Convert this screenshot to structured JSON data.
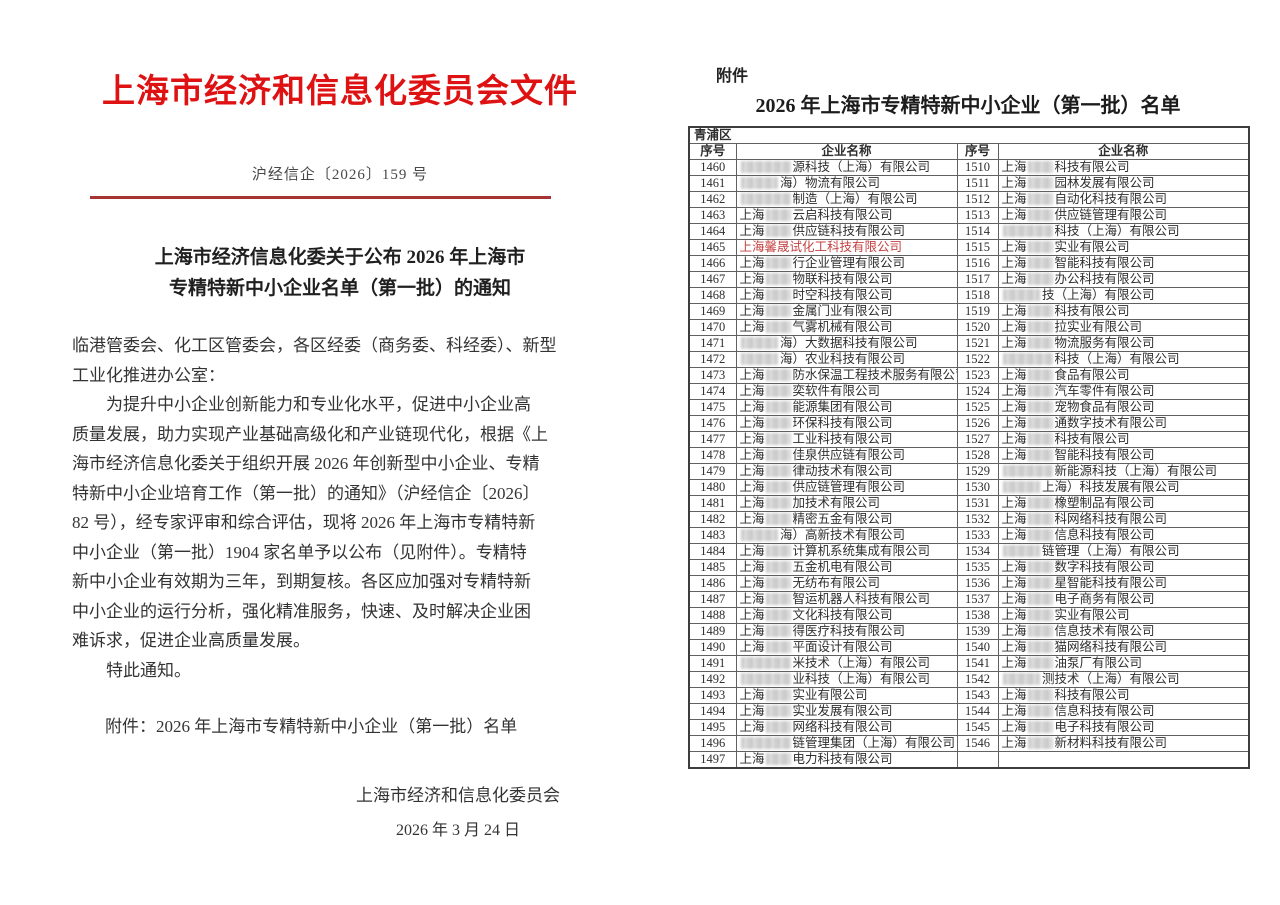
{
  "colors": {
    "header_red": "#de1212",
    "rule_red": "#a63434",
    "highlight_red": "#c54040",
    "border_dark": "#3d3d3d",
    "border_light": "#606060",
    "ink": "#333333"
  },
  "page_left": {
    "org_header": "上海市经济和信息化委员会文件",
    "doc_number": "沪经信企〔2026〕159 号",
    "title_line1": "上海市经济信息化委关于公布 2026 年上海市",
    "title_line2": "专精特新中小企业名单（第一批）的通知",
    "body_lines": [
      "临港管委会、化工区管委会，各区经委（商务委、科经委）、新型",
      "工业化推进办公室：",
      "　　为提升中小企业创新能力和专业化水平，促进中小企业高",
      "质量发展，助力实现产业基础高级化和产业链现代化，根据《上",
      "海市经济信息化委关于组织开展 2026 年创新型中小企业、专精",
      "特新中小企业培育工作（第一批）的通知》（沪经信企〔2026〕",
      "82 号），经专家评审和综合评估，现将 2026 年上海市专精特新",
      "中小企业（第一批）1904 家名单予以公布（见附件）。专精特",
      "新中小企业有效期为三年，到期复核。各区应加强对专精特新",
      "中小企业的运行分析，强化精准服务，快速、及时解决企业困",
      "难诉求，促进企业高质量发展。",
      "　　特此通知。"
    ],
    "attachment_line": "附件：2026 年上海市专精特新中小企业（第一批）名单",
    "signature": "上海市经济和信息化委员会",
    "date": "2026 年 3 月 24 日"
  },
  "page_right": {
    "attachment_label": "附件",
    "table_title": "2026 年上海市专精特新中小企业（第一批）名单",
    "region": "青浦区",
    "col_headers": [
      "序号",
      "企业名称",
      "序号",
      "企业名称"
    ],
    "rows": [
      {
        "ln": "1460",
        "lp": "",
        "lb": 4,
        "ls": "源科技（上海）有限公司",
        "rn": "1510",
        "rp": "上海",
        "rb": 2,
        "rs": "科技有限公司"
      },
      {
        "ln": "1461",
        "lp": "",
        "lb": 3,
        "ls": "海）物流有限公司",
        "rn": "1511",
        "rp": "上海",
        "rb": 2,
        "rs": "园林发展有限公司"
      },
      {
        "ln": "1462",
        "lp": "",
        "lb": 4,
        "ls": "制造（上海）有限公司",
        "rn": "1512",
        "rp": "上海",
        "rb": 2,
        "rs": "自动化科技有限公司"
      },
      {
        "ln": "1463",
        "lp": "上海",
        "lb": 2,
        "ls": "云启科技有限公司",
        "rn": "1513",
        "rp": "上海",
        "rb": 2,
        "rs": "供应链管理有限公司"
      },
      {
        "ln": "1464",
        "lp": "上海",
        "lb": 2,
        "ls": "供应链科技有限公司",
        "rn": "1514",
        "rp": "",
        "rb": 4,
        "rs": "科技（上海）有限公司"
      },
      {
        "ln": "1465",
        "lp": "上海馨晟试化工科技有限公司",
        "lb": 0,
        "ls": "",
        "lr": true,
        "rn": "1515",
        "rp": "上海",
        "rb": 2,
        "rs": "实业有限公司"
      },
      {
        "ln": "1466",
        "lp": "上海",
        "lb": 2,
        "ls": "行企业管理有限公司",
        "rn": "1516",
        "rp": "上海",
        "rb": 2,
        "rs": "智能科技有限公司"
      },
      {
        "ln": "1467",
        "lp": "上海",
        "lb": 2,
        "ls": "物联科技有限公司",
        "rn": "1517",
        "rp": "上海",
        "rb": 2,
        "rs": "办公科技有限公司"
      },
      {
        "ln": "1468",
        "lp": "上海",
        "lb": 2,
        "ls": "时空科技有限公司",
        "rn": "1518",
        "rp": "",
        "rb": 3,
        "rs": "技（上海）有限公司"
      },
      {
        "ln": "1469",
        "lp": "上海",
        "lb": 2,
        "ls": "金属门业有限公司",
        "rn": "1519",
        "rp": "上海",
        "rb": 2,
        "rs": "科技有限公司"
      },
      {
        "ln": "1470",
        "lp": "上海",
        "lb": 2,
        "ls": "气雾机械有限公司",
        "rn": "1520",
        "rp": "上海",
        "rb": 2,
        "rs": "拉实业有限公司"
      },
      {
        "ln": "1471",
        "lp": "",
        "lb": 3,
        "ls": "海）大数据科技有限公司",
        "rn": "1521",
        "rp": "上海",
        "rb": 2,
        "rs": "物流服务有限公司"
      },
      {
        "ln": "1472",
        "lp": "",
        "lb": 3,
        "ls": "海）农业科技有限公司",
        "rn": "1522",
        "rp": "",
        "rb": 4,
        "rs": "科技（上海）有限公司"
      },
      {
        "ln": "1473",
        "lp": "上海",
        "lb": 2,
        "ls": "防水保温工程技术服务有限公司",
        "rn": "1523",
        "rp": "上海",
        "rb": 2,
        "rs": "食品有限公司"
      },
      {
        "ln": "1474",
        "lp": "上海",
        "lb": 2,
        "ls": "奕软件有限公司",
        "rn": "1524",
        "rp": "上海",
        "rb": 2,
        "rs": "汽车零件有限公司"
      },
      {
        "ln": "1475",
        "lp": "上海",
        "lb": 2,
        "ls": "能源集团有限公司",
        "rn": "1525",
        "rp": "上海",
        "rb": 2,
        "rs": "宠物食品有限公司"
      },
      {
        "ln": "1476",
        "lp": "上海",
        "lb": 2,
        "ls": "环保科技有限公司",
        "rn": "1526",
        "rp": "上海",
        "rb": 2,
        "rs": "通数字技术有限公司"
      },
      {
        "ln": "1477",
        "lp": "上海",
        "lb": 2,
        "ls": "工业科技有限公司",
        "rn": "1527",
        "rp": "上海",
        "rb": 2,
        "rs": "科技有限公司"
      },
      {
        "ln": "1478",
        "lp": "上海",
        "lb": 2,
        "ls": "佳泉供应链有限公司",
        "rn": "1528",
        "rp": "上海",
        "rb": 2,
        "rs": "智能科技有限公司"
      },
      {
        "ln": "1479",
        "lp": "上海",
        "lb": 2,
        "ls": "律动技术有限公司",
        "rn": "1529",
        "rp": "",
        "rb": 4,
        "rs": "新能源科技（上海）有限公司"
      },
      {
        "ln": "1480",
        "lp": "上海",
        "lb": 2,
        "ls": "供应链管理有限公司",
        "rn": "1530",
        "rp": "",
        "rb": 3,
        "rs": "上海）科技发展有限公司"
      },
      {
        "ln": "1481",
        "lp": "上海",
        "lb": 2,
        "ls": "加技术有限公司",
        "rn": "1531",
        "rp": "上海",
        "rb": 2,
        "rs": "橡塑制品有限公司"
      },
      {
        "ln": "1482",
        "lp": "上海",
        "lb": 2,
        "ls": "精密五金有限公司",
        "rn": "1532",
        "rp": "上海",
        "rb": 2,
        "rs": "科网络科技有限公司"
      },
      {
        "ln": "1483",
        "lp": "",
        "lb": 3,
        "ls": "海）高新技术有限公司",
        "rn": "1533",
        "rp": "上海",
        "rb": 2,
        "rs": "信息科技有限公司"
      },
      {
        "ln": "1484",
        "lp": "上海",
        "lb": 2,
        "ls": "计算机系统集成有限公司",
        "rn": "1534",
        "rp": "",
        "rb": 3,
        "rs": "链管理（上海）有限公司"
      },
      {
        "ln": "1485",
        "lp": "上海",
        "lb": 2,
        "ls": "五金机电有限公司",
        "rn": "1535",
        "rp": "上海",
        "rb": 2,
        "rs": "数字科技有限公司"
      },
      {
        "ln": "1486",
        "lp": "上海",
        "lb": 2,
        "ls": "无纺布有限公司",
        "rn": "1536",
        "rp": "上海",
        "rb": 2,
        "rs": "星智能科技有限公司"
      },
      {
        "ln": "1487",
        "lp": "上海",
        "lb": 2,
        "ls": "智运机器人科技有限公司",
        "rn": "1537",
        "rp": "上海",
        "rb": 2,
        "rs": "电子商务有限公司"
      },
      {
        "ln": "1488",
        "lp": "上海",
        "lb": 2,
        "ls": "文化科技有限公司",
        "rn": "1538",
        "rp": "上海",
        "rb": 2,
        "rs": "实业有限公司"
      },
      {
        "ln": "1489",
        "lp": "上海",
        "lb": 2,
        "ls": "得医疗科技有限公司",
        "rn": "1539",
        "rp": "上海",
        "rb": 2,
        "rs": "信息技术有限公司"
      },
      {
        "ln": "1490",
        "lp": "上海",
        "lb": 2,
        "ls": "平面设计有限公司",
        "rn": "1540",
        "rp": "上海",
        "rb": 2,
        "rs": "猫网络科技有限公司"
      },
      {
        "ln": "1491",
        "lp": "",
        "lb": 4,
        "ls": "米技术（上海）有限公司",
        "rn": "1541",
        "rp": "上海",
        "rb": 2,
        "rs": "油泵厂有限公司"
      },
      {
        "ln": "1492",
        "lp": "",
        "lb": 4,
        "ls": "业科技（上海）有限公司",
        "rn": "1542",
        "rp": "",
        "rb": 3,
        "rs": "测技术（上海）有限公司"
      },
      {
        "ln": "1493",
        "lp": "上海",
        "lb": 2,
        "ls": "实业有限公司",
        "rn": "1543",
        "rp": "上海",
        "rb": 2,
        "rs": "科技有限公司"
      },
      {
        "ln": "1494",
        "lp": "上海",
        "lb": 2,
        "ls": "实业发展有限公司",
        "rn": "1544",
        "rp": "上海",
        "rb": 2,
        "rs": "信息科技有限公司"
      },
      {
        "ln": "1495",
        "lp": "上海",
        "lb": 2,
        "ls": "网络科技有限公司",
        "rn": "1545",
        "rp": "上海",
        "rb": 2,
        "rs": "电子科技有限公司"
      },
      {
        "ln": "1496",
        "lp": "",
        "lb": 4,
        "ls": "链管理集团（上海）有限公司",
        "rn": "1546",
        "rp": "上海",
        "rb": 2,
        "rs": "新材料科技有限公司"
      },
      {
        "ln": "1497",
        "lp": "上海",
        "lb": 2,
        "ls": "电力科技有限公司",
        "rn": "",
        "rp": "",
        "rb": 0,
        "rs": ""
      }
    ]
  }
}
